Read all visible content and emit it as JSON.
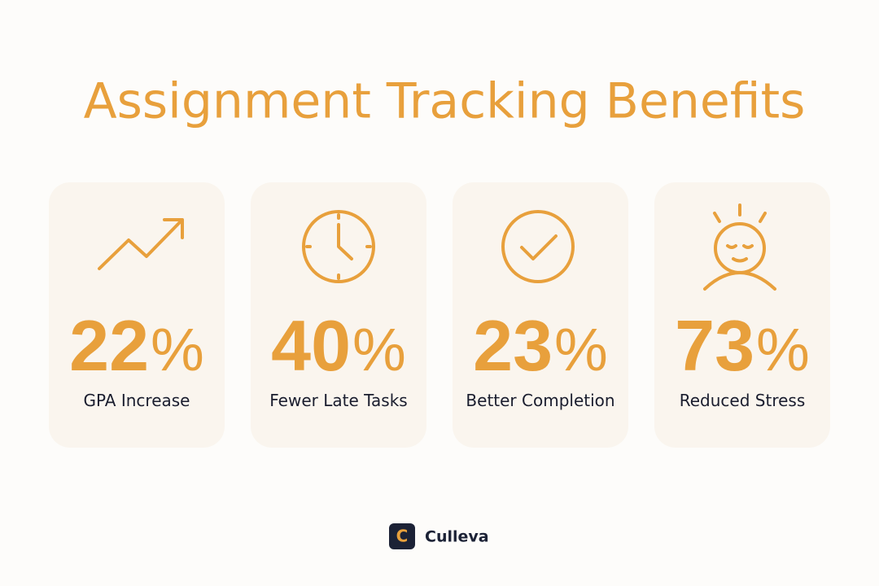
{
  "header": {
    "title": "Assignment Tracking Benefits"
  },
  "cards": [
    {
      "number": 22,
      "unit": "%",
      "label": "GPA Increase"
    },
    {
      "number": 40,
      "unit": "%",
      "label": "Fewer Late Tasks"
    },
    {
      "number": 23,
      "unit": "%",
      "label": "Better Completion"
    },
    {
      "number": 73,
      "unit": "%",
      "label": "Reduced Stress"
    }
  ],
  "footer": {
    "logo_letter": "C",
    "brand": "Culleva"
  }
}
